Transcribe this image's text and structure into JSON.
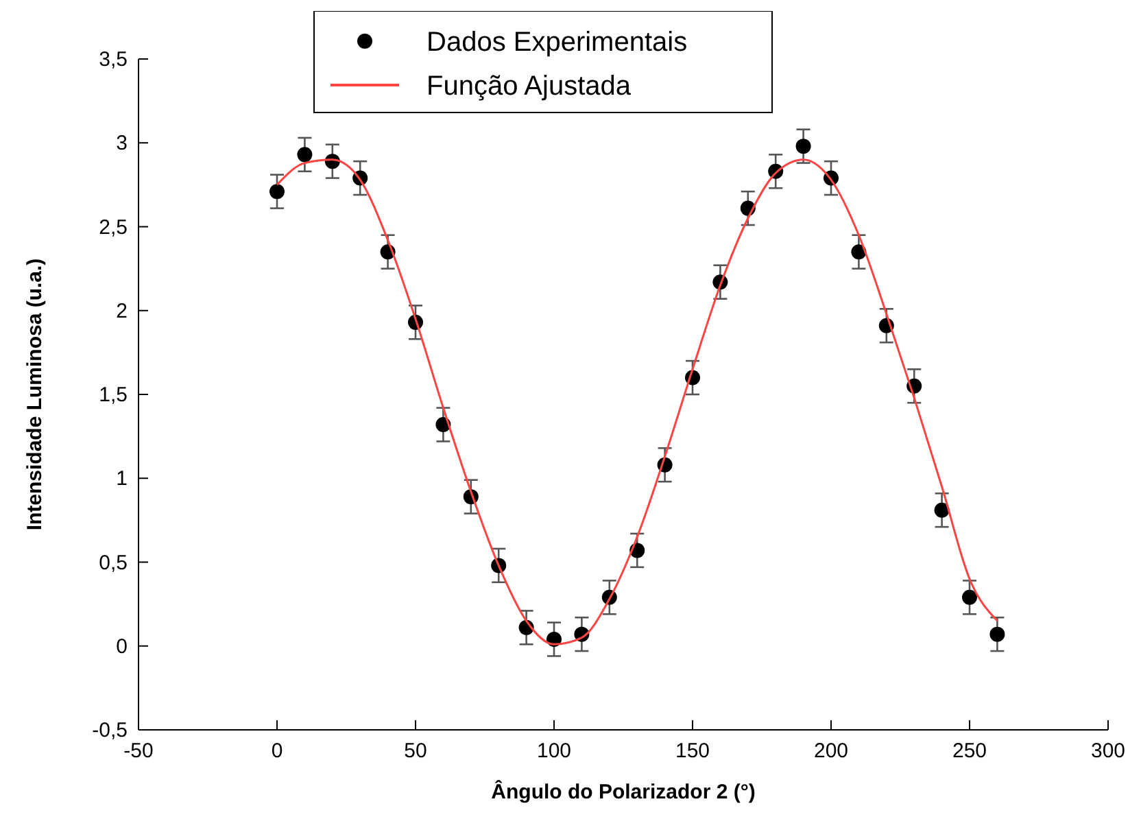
{
  "chart_data": {
    "type": "scatter",
    "xlabel": "Ângulo do Polarizador 2 (°)",
    "ylabel": "Intensidade Luminosa (u.a.)",
    "xlim": [
      -50,
      300
    ],
    "xticks": [
      -50,
      0,
      50,
      100,
      150,
      200,
      250,
      300
    ],
    "ylim": [
      -0.5,
      3.5
    ],
    "yticks": [
      {
        "value": -0.5,
        "label": "-0,5"
      },
      0,
      {
        "value": 0.5,
        "label": "0,5"
      },
      1,
      {
        "value": 1.5,
        "label": "1,5"
      },
      2,
      {
        "value": 2.5,
        "label": "2,5"
      },
      3,
      {
        "value": 3.5,
        "label": "3,5"
      }
    ],
    "grid": false,
    "legend": "top",
    "marker": "circle",
    "series": [
      {
        "name": "Dados Experimentais",
        "color": "#000000",
        "x": [
          0,
          10,
          20,
          30,
          40,
          50,
          60,
          70,
          80,
          90,
          100,
          110,
          120,
          130,
          140,
          150,
          160,
          170,
          180,
          190,
          200,
          210,
          220,
          230,
          240,
          250,
          260
        ],
        "values": [
          2.71,
          2.93,
          2.89,
          2.79,
          2.35,
          1.93,
          1.32,
          0.89,
          0.48,
          0.11,
          0.04,
          0.07,
          0.29,
          0.57,
          1.08,
          1.6,
          2.17,
          2.61,
          2.83,
          2.98,
          2.79,
          2.35,
          1.91,
          1.55,
          0.81,
          0.29,
          0.07
        ],
        "errors": [
          0.1,
          0.1,
          0.1,
          0.1,
          0.1,
          0.1,
          0.1,
          0.1,
          0.1,
          0.1,
          0.1,
          0.1,
          0.1,
          0.1,
          0.1,
          0.1,
          0.1,
          0.1,
          0.1,
          0.1,
          0.1,
          0.1,
          0.1,
          0.1,
          0.1,
          0.1,
          0.1
        ]
      },
      {
        "name": "Função Ajustada",
        "type": "line",
        "color": "#ff4444",
        "marker": "none",
        "line_style": "solid",
        "x": [
          0,
          10,
          20,
          30,
          40,
          50,
          60,
          70,
          80,
          90,
          100,
          110,
          120,
          130,
          140,
          150,
          160,
          170,
          180,
          190,
          200,
          210,
          220,
          230,
          240,
          250,
          260
        ],
        "values": [
          2.75,
          2.88,
          2.9,
          2.78,
          2.42,
          1.95,
          1.42,
          0.92,
          0.48,
          0.15,
          0.01,
          0.05,
          0.28,
          0.65,
          1.13,
          1.65,
          2.15,
          2.55,
          2.82,
          2.9,
          2.78,
          2.45,
          1.98,
          1.48,
          0.95,
          0.4,
          0.15
        ]
      }
    ]
  }
}
